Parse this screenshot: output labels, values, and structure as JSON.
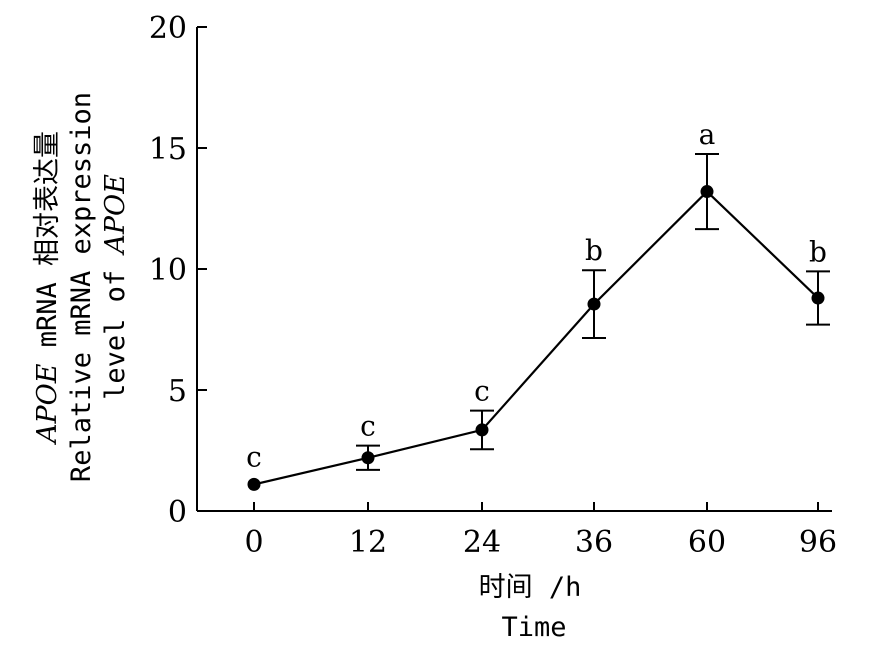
{
  "chart_data": {
    "type": "line",
    "x": [
      0,
      12,
      24,
      36,
      60,
      96
    ],
    "x_tick_labels": [
      "0",
      "12",
      "24",
      "36",
      "60",
      "96"
    ],
    "series": [
      {
        "values": [
          1.1,
          2.2,
          3.35,
          8.55,
          13.2,
          8.8
        ],
        "error": [
          0,
          0.5,
          0.8,
          1.4,
          1.55,
          1.1
        ],
        "significance": [
          "c",
          "c",
          "c",
          "b",
          "a",
          "b"
        ]
      }
    ],
    "ylim": [
      0,
      20
    ],
    "y_ticks": [
      0,
      5,
      10,
      15,
      20
    ],
    "y_tick_labels": [
      "0",
      "5",
      "10",
      "15",
      "20"
    ],
    "xlabel_line1": "时间 /h",
    "xlabel_line2": "Time",
    "ylabel_line1_gene": "APOE",
    "ylabel_line1_text": " mRNA 相对表达量",
    "ylabel_line2": "Relative mRNA expression",
    "ylabel_line3_text": "level of ",
    "ylabel_line3_gene": "APOE",
    "grid": false,
    "legend": "none"
  }
}
